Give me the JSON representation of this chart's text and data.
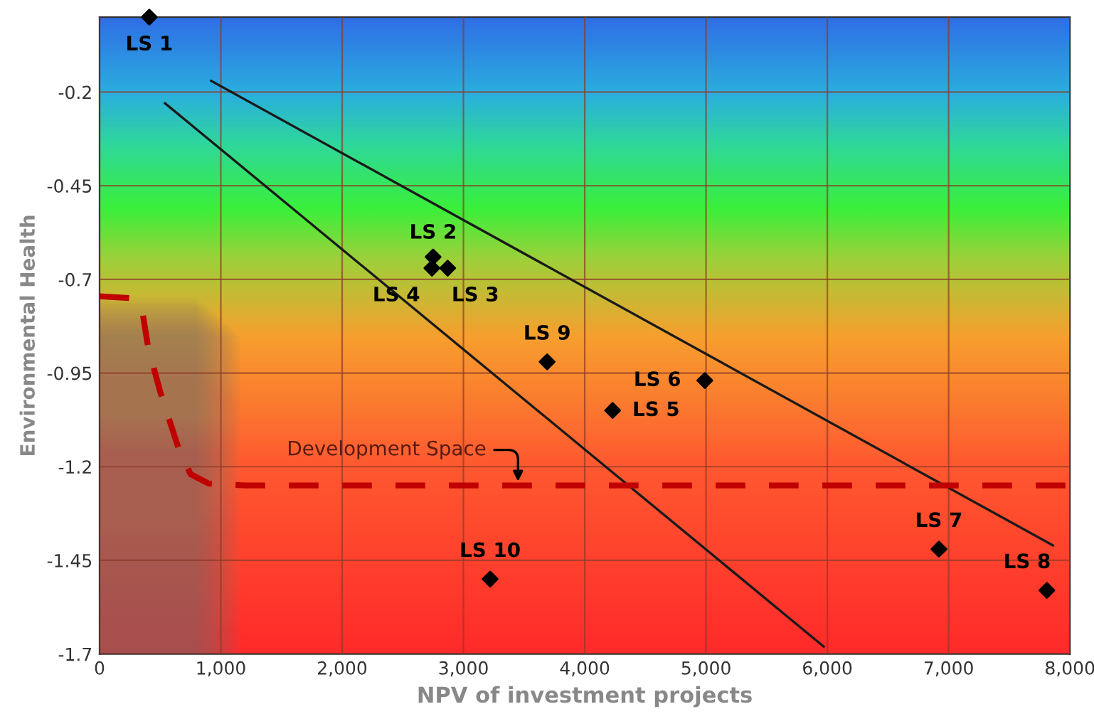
{
  "chart_data": {
    "type": "scatter",
    "xlabel": "NPV of investment projects",
    "ylabel": "Environmental Health",
    "xlim": [
      0,
      8000
    ],
    "ylim": [
      -1.7,
      0
    ],
    "xticks": [
      0,
      {
        "value": 1000,
        "label": "1,000"
      },
      {
        "value": 2000,
        "label": "2,000"
      },
      {
        "value": 3000,
        "label": "3,000"
      },
      {
        "value": 4000,
        "label": "4,000"
      },
      {
        "value": 5000,
        "label": "5,000"
      },
      {
        "value": 6000,
        "label": "6,000"
      },
      {
        "value": 7000,
        "label": "7,000"
      },
      {
        "value": 8000,
        "label": "8,000"
      }
    ],
    "yticks": [
      -0.2,
      -0.45,
      -0.7,
      -0.95,
      -1.2,
      -1.45,
      -1.7
    ],
    "grid": true,
    "legend": false,
    "series": [
      {
        "type": "line",
        "color": "#1a1a1a",
        "marker": "none",
        "line_style": "solid",
        "x": [
          920,
          7860
        ],
        "values": [
          -0.17,
          -1.41
        ]
      },
      {
        "type": "line",
        "color": "#1a1a1a",
        "marker": "none",
        "line_style": "solid",
        "x": [
          540,
          5970
        ],
        "values": [
          -0.23,
          -1.68
        ]
      },
      {
        "type": "line",
        "color": "#c00000",
        "marker": "none",
        "line_style": "dashed",
        "x": [
          0,
          250,
          350,
          400,
          500,
          650,
          750,
          900,
          1200,
          8000
        ],
        "values": [
          -0.745,
          -0.75,
          -0.78,
          -0.88,
          -1.0,
          -1.15,
          -1.22,
          -1.245,
          -1.25,
          -1.25
        ]
      },
      {
        "color": "#000000",
        "marker": "diamond",
        "x": [
          410,
          2750,
          2870,
          2740,
          4230,
          4990,
          6920,
          7810,
          3690,
          3220
        ],
        "values": [
          0.0,
          -0.64,
          -0.67,
          -0.67,
          -1.05,
          -0.97,
          -1.42,
          -1.53,
          -0.92,
          -1.5
        ]
      }
    ],
    "annotations": [
      {
        "text": "LS 1",
        "x": 410,
        "y": 0.0
      },
      {
        "text": "LS 2",
        "x": 2750,
        "y": -0.64
      },
      {
        "text": "LS 3",
        "x": 2870,
        "y": -0.67
      },
      {
        "text": "LS 4",
        "x": 2740,
        "y": -0.67
      },
      {
        "text": "LS 5",
        "x": 4230,
        "y": -1.05
      },
      {
        "text": "LS 6",
        "x": 4990,
        "y": -0.97
      },
      {
        "text": "LS 7",
        "x": 6920,
        "y": -1.42
      },
      {
        "text": "LS 8",
        "x": 7810,
        "y": -1.53
      },
      {
        "text": "LS 9",
        "x": 3690,
        "y": -0.92
      },
      {
        "text": "LS 10",
        "x": 3220,
        "y": -1.5
      },
      {
        "text": "Development Space",
        "x": 3450,
        "y": -1.25
      }
    ]
  }
}
